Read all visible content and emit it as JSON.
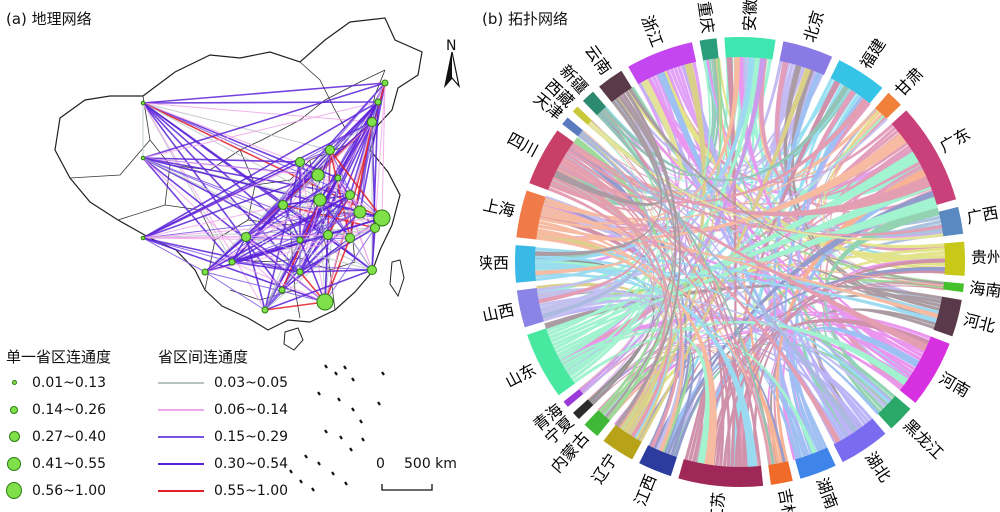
{
  "panel_a": {
    "title": "(a) 地理网络",
    "north": "N",
    "scale": {
      "zero": "0",
      "value": "500 km"
    },
    "node_legend": {
      "title": "单一省区连通度",
      "items": [
        "0.01~0.13",
        "0.14~0.26",
        "0.27~0.40",
        "0.41~0.55",
        "0.56~1.00"
      ]
    },
    "edge_legend": {
      "title": "省区间连通度",
      "items": [
        {
          "label": "0.03~0.05",
          "color": "#b8c4c4"
        },
        {
          "label": "0.06~0.14",
          "color": "#f0a6ea"
        },
        {
          "label": "0.15~0.29",
          "color": "#7b52e6"
        },
        {
          "label": "0.30~0.54",
          "color": "#5a22d8"
        },
        {
          "label": "0.55~1.00",
          "color": "#e0202a"
        }
      ]
    }
  },
  "panel_b": {
    "title": "(b) 拓扑网络",
    "provinces": [
      {
        "name": "浙江",
        "color": "#c446f0"
      },
      {
        "name": "重庆",
        "color": "#2a9e7a"
      },
      {
        "name": "安徽",
        "color": "#3fe6b0"
      },
      {
        "name": "北京",
        "color": "#8a7ae6"
      },
      {
        "name": "福建",
        "color": "#35c3e6"
      },
      {
        "name": "甘肃",
        "color": "#f0803a"
      },
      {
        "name": "广东",
        "color": "#c9407a"
      },
      {
        "name": "广西",
        "color": "#5a88c0"
      },
      {
        "name": "贵州",
        "color": "#c8c818"
      },
      {
        "name": "海南",
        "color": "#44c02a"
      },
      {
        "name": "河北",
        "color": "#5a3a4a"
      },
      {
        "name": "河南",
        "color": "#d630e0"
      },
      {
        "name": "黑龙江",
        "color": "#2aa868"
      },
      {
        "name": "湖北",
        "color": "#7a6cf0"
      },
      {
        "name": "湖南",
        "color": "#3f84e8"
      },
      {
        "name": "吉林",
        "color": "#f06a2a"
      },
      {
        "name": "江苏",
        "color": "#a02858"
      },
      {
        "name": "江西",
        "color": "#2c3c9e"
      },
      {
        "name": "辽宁",
        "color": "#b8a218"
      },
      {
        "name": "内蒙古",
        "color": "#3fb838"
      },
      {
        "name": "宁夏",
        "color": "#2a2a2a"
      },
      {
        "name": "青海",
        "color": "#9a3ad8"
      },
      {
        "name": "山东",
        "color": "#48e8a0"
      },
      {
        "name": "山西",
        "color": "#8a84e6"
      },
      {
        "name": "陕西",
        "color": "#3ab8e6"
      },
      {
        "name": "上海",
        "color": "#f07a48"
      },
      {
        "name": "四川",
        "color": "#c84068"
      },
      {
        "name": "天津",
        "color": "#5a7ac0"
      },
      {
        "name": "西藏",
        "color": "#c8c83a"
      },
      {
        "name": "新疆",
        "color": "#2c8a70"
      },
      {
        "name": "云南",
        "color": "#5a3a48"
      }
    ]
  }
}
